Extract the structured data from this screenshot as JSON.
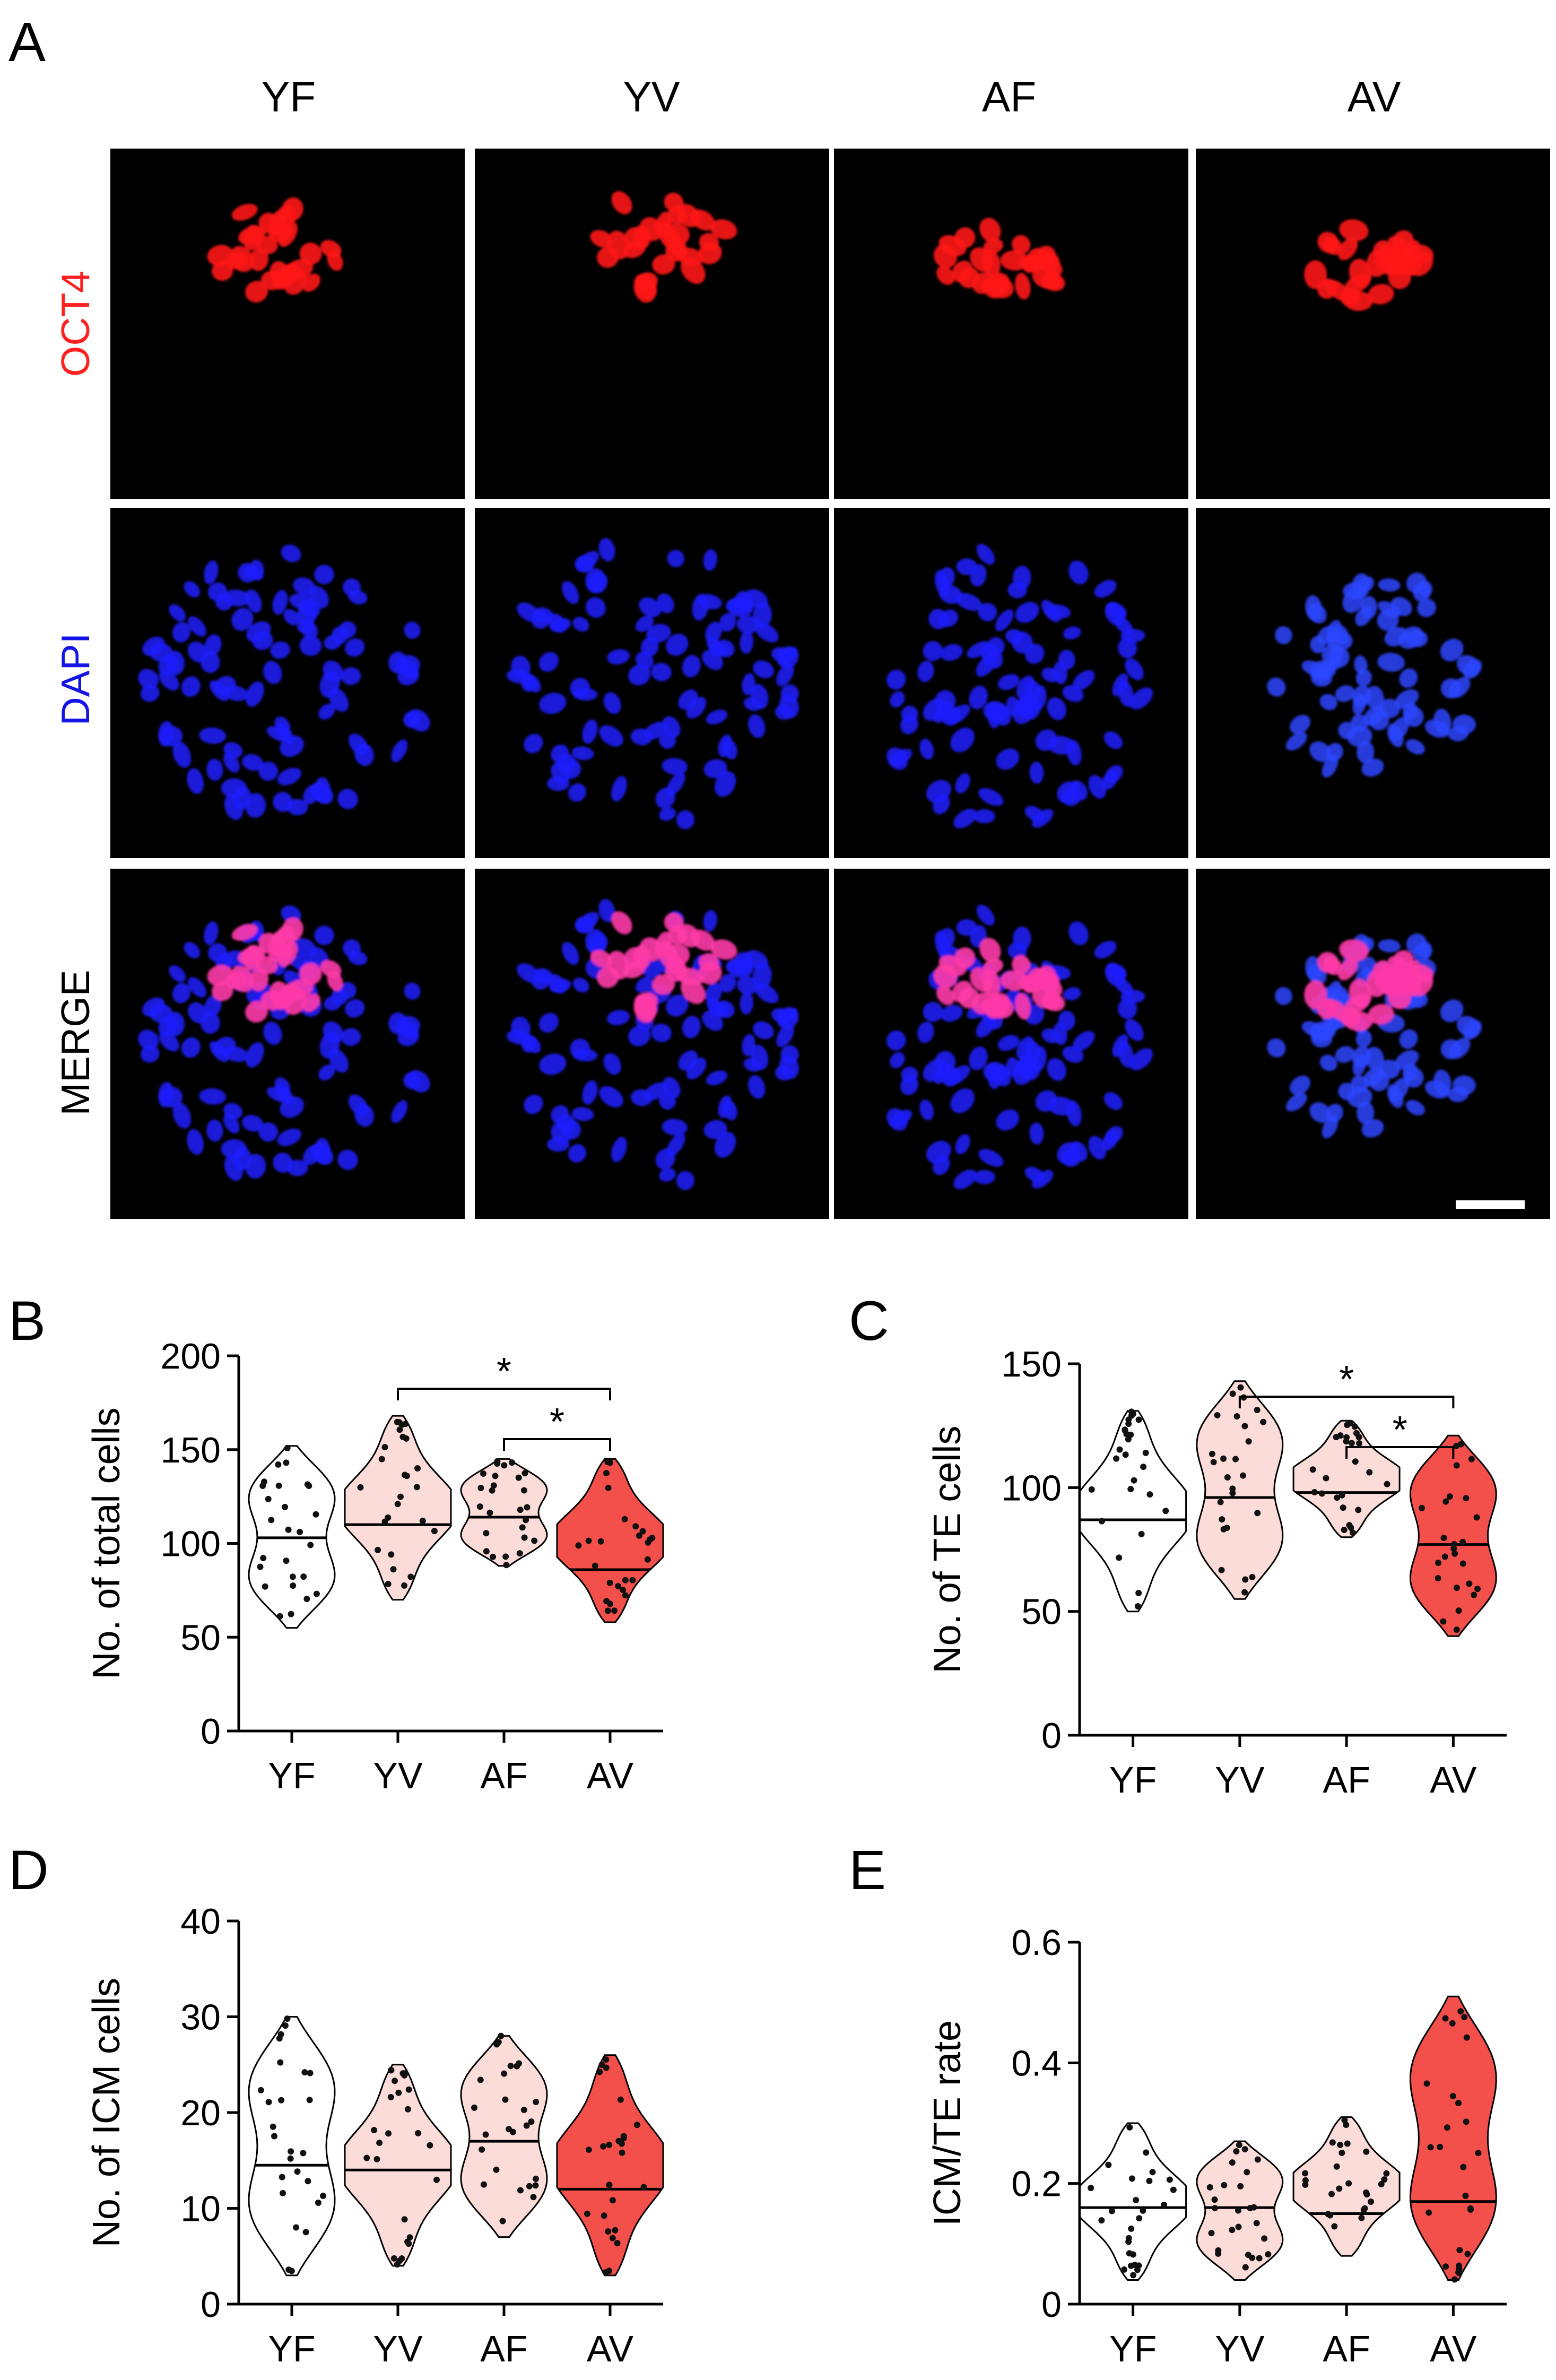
{
  "panel_a": {
    "letter": "A",
    "columns": [
      "YF",
      "YV",
      "AF",
      "AV"
    ],
    "rows": [
      {
        "label": "OCT4",
        "color": "#ff2020",
        "stain": "oct4"
      },
      {
        "label": "DAPI",
        "color": "#1414e6",
        "stain": "dapi"
      },
      {
        "label": "MERGE",
        "color": "#000000",
        "stain": "merge"
      }
    ],
    "colors": {
      "oct4": "#ff1a1a",
      "dapi": "#1e1eff",
      "merge_pink": "#ff3aa8",
      "dapi_av": "#2d46ff"
    }
  },
  "groups": {
    "YF": {
      "fill": "#ffffff"
    },
    "YV": {
      "fill": "#fbdcd9"
    },
    "AF": {
      "fill": "#fbdcd9"
    },
    "AV": {
      "fill": "#f3504c"
    }
  },
  "chart_data": [
    {
      "panel": "B",
      "type": "violin",
      "ylabel": "No. of total cells",
      "ylim": [
        0,
        200
      ],
      "yticks": [
        0,
        50,
        100,
        150,
        200
      ],
      "categories": [
        "YF",
        "YV",
        "AF",
        "AV"
      ],
      "medians": [
        103,
        110,
        114,
        86
      ],
      "ranges": [
        [
          55,
          152
        ],
        [
          70,
          168
        ],
        [
          88,
          145
        ],
        [
          58,
          145
        ]
      ],
      "comparisons": [
        {
          "from": "YV",
          "to": "AV",
          "label": "*"
        },
        {
          "from": "AF",
          "to": "AV",
          "label": "*"
        }
      ]
    },
    {
      "panel": "C",
      "type": "violin",
      "ylabel": "No. of TE cells",
      "ylim": [
        0,
        150
      ],
      "yticks": [
        0,
        50,
        100,
        150
      ],
      "categories": [
        "YF",
        "YV",
        "AF",
        "AV"
      ],
      "medians": [
        87,
        96,
        98,
        77
      ],
      "ranges": [
        [
          50,
          131
        ],
        [
          55,
          143
        ],
        [
          80,
          127
        ],
        [
          40,
          121
        ]
      ],
      "comparisons": [
        {
          "from": "YV",
          "to": "AV",
          "label": "*"
        },
        {
          "from": "AF",
          "to": "AV",
          "label": "*"
        }
      ]
    },
    {
      "panel": "D",
      "type": "violin",
      "ylabel": "No. of ICM cells",
      "ylim": [
        0,
        40
      ],
      "yticks": [
        0,
        10,
        20,
        30,
        40
      ],
      "categories": [
        "YF",
        "YV",
        "AF",
        "AV"
      ],
      "medians": [
        14.5,
        14,
        17,
        12
      ],
      "ranges": [
        [
          3,
          30
        ],
        [
          4,
          25
        ],
        [
          7,
          28
        ],
        [
          3,
          26
        ]
      ],
      "comparisons": []
    },
    {
      "panel": "E",
      "type": "violin",
      "ylabel": "ICM/TE rate",
      "ylim": [
        0,
        0.6
      ],
      "yticks": [
        "0",
        "0.2",
        "0.4",
        "0.6"
      ],
      "categories": [
        "YF",
        "YV",
        "AF",
        "AV"
      ],
      "medians": [
        0.16,
        0.16,
        0.15,
        0.17
      ],
      "ranges": [
        [
          0.04,
          0.3
        ],
        [
          0.04,
          0.27
        ],
        [
          0.08,
          0.31
        ],
        [
          0.04,
          0.51
        ]
      ],
      "comparisons": []
    }
  ]
}
